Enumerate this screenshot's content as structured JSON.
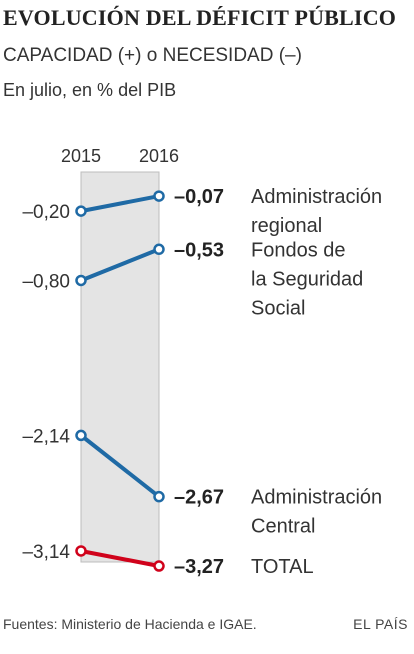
{
  "header": {
    "title": "EVOLUCIÓN DEL DÉFICIT PÚBLICO",
    "subtitle": "CAPACIDAD (+) o NECESIDAD (–)",
    "units": "En julio, en % del PIB"
  },
  "footer": {
    "source": "Fuentes: Ministerio de Hacienda e IGAE.",
    "brand": "EL PAÍS"
  },
  "colors": {
    "series": "#1f6aa5",
    "total": "#d0021b",
    "band": "#e4e4e4"
  },
  "chart_data": {
    "type": "line",
    "x": [
      "2015",
      "2016"
    ],
    "series": [
      {
        "name": "Administración regional",
        "label_lines": [
          "Administración",
          "regional"
        ],
        "values": [
          -0.2,
          -0.07
        ],
        "labels": [
          "–0,20",
          "–0,07"
        ],
        "kind": "normal"
      },
      {
        "name": "Fondos de la Seguridad Social",
        "label_lines": [
          "Fondos de",
          "la Seguridad",
          "Social"
        ],
        "values": [
          -0.8,
          -0.53
        ],
        "labels": [
          "–0,80",
          "–0,53"
        ],
        "kind": "normal"
      },
      {
        "name": "Administración Central",
        "label_lines": [
          "Administración",
          "Central"
        ],
        "values": [
          -2.14,
          -2.67
        ],
        "labels": [
          "–2,14",
          "–2,67"
        ],
        "kind": "normal"
      },
      {
        "name": "TOTAL",
        "label_lines": [
          "TOTAL"
        ],
        "values": [
          -3.14,
          -3.27
        ],
        "labels": [
          "–3,14",
          "–3,27"
        ],
        "kind": "total"
      }
    ]
  }
}
